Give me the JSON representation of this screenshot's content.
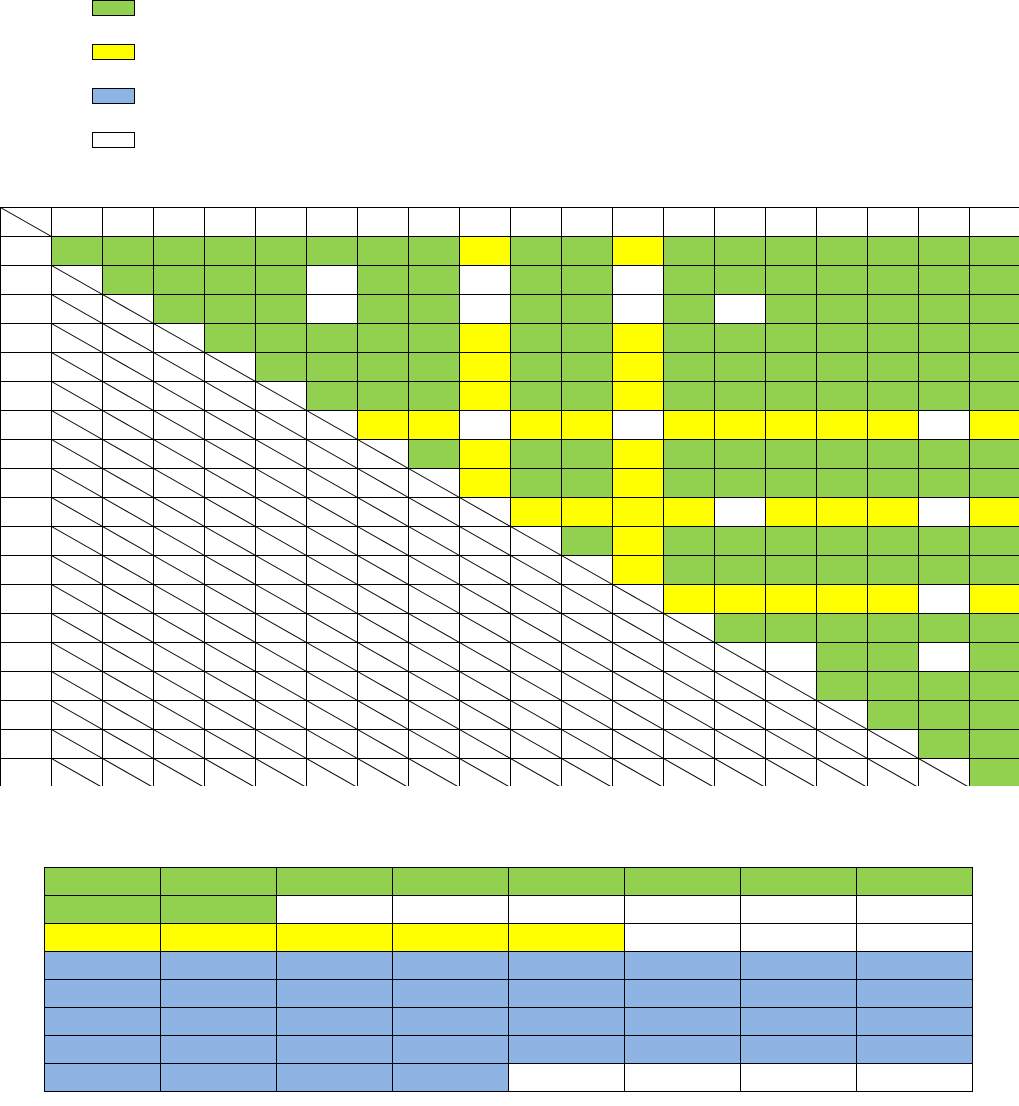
{
  "colors": {
    "green": "#92d050",
    "yellow": "#ffff00",
    "blue": "#8db4e2",
    "white": "#ffffff",
    "border": "#000000"
  },
  "legend": [
    {
      "color": "green",
      "label": ""
    },
    {
      "color": "yellow",
      "label": ""
    },
    {
      "color": "blue",
      "label": ""
    },
    {
      "color": "white",
      "label": ""
    }
  ],
  "matrix": {
    "size": 19,
    "note": "",
    "rows": [
      "GGGGGGGGYGGYGGGGGGG",
      "-GGGGWGGWGGWGGGGGGG",
      "--GGGWGGWGGWGWGGGGG",
      "---GGGGGYGGYGGGGGGG",
      "----GGGGYGGYGGGGGGG",
      "-----GGGYGGYGGGGGGG",
      "------YYWYYWYYYYYWY",
      "-------GYGGYGGGGGGG",
      "--------YGGYGGGGGGG",
      "---------YYYYWYYYWY",
      "----------GYGGGGGGG",
      "-----------YGGGGGGG",
      "------------YYYYYWY",
      "-------------GGGGGG",
      "--------------WGGWG",
      "---------------GGGG",
      "----------------GGG",
      "-----------------GG",
      "------------------G"
    ]
  },
  "lower_table": {
    "rows": [
      {
        "color": "green",
        "filled": 8
      },
      {
        "color": "green",
        "filled": 2
      },
      {
        "color": "yellow",
        "filled": 5
      },
      {
        "color": "blue",
        "filled": 8
      },
      {
        "color": "blue",
        "filled": 8
      },
      {
        "color": "blue",
        "filled": 8
      },
      {
        "color": "blue",
        "filled": 8
      },
      {
        "color": "blue",
        "filled": 4
      }
    ],
    "cols": 8
  }
}
